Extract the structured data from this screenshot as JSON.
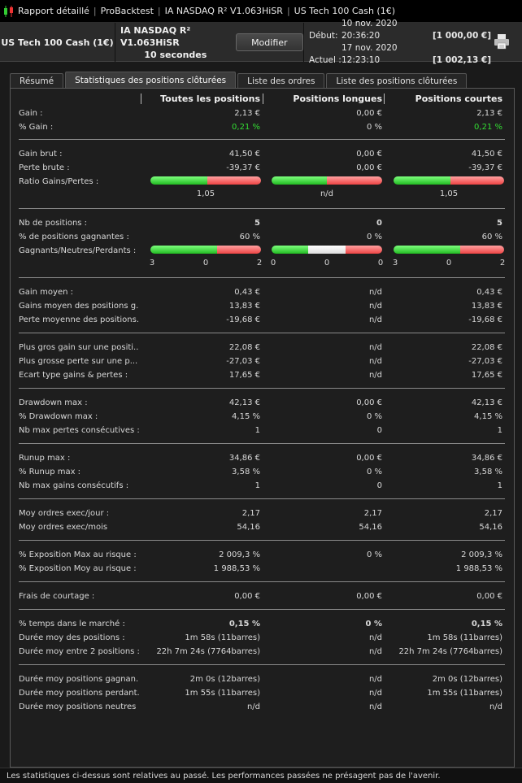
{
  "titlebar": {
    "app": "Rapport détaillé",
    "items": [
      "ProBacktest",
      "IA NASDAQ R²  V1.063HiSR",
      "US Tech 100 Cash (1€)"
    ]
  },
  "header": {
    "instrument": "US Tech 100 Cash (1€)",
    "strategy_line1": "IA NASDAQ R²  V1.063HiSR",
    "strategy_line2": "10 secondes",
    "modify_label": "Modifier",
    "start_label": "Début:",
    "start_date": "10 nov. 2020 20:36:20",
    "start_value": "[1 000,00 €]",
    "current_label": "Actuel :",
    "current_date": "17 nov. 2020 12:23:10",
    "current_value": "[1 002,13 €]"
  },
  "tabs": [
    "Résumé",
    "Statistiques des positions clôturées",
    "Liste des ordres",
    "Liste des positions clôturées"
  ],
  "columns": {
    "all": "Toutes les positions",
    "long": "Positions longues",
    "short": "Positions courtes"
  },
  "rows": [
    {
      "label": "Gain :",
      "v": [
        "2,13 €",
        "0,00 €",
        "2,13 €"
      ]
    },
    {
      "label": "% Gain :",
      "v": [
        "0,21 %",
        "0 %",
        "0,21 %"
      ]
    },
    {
      "label": "Gain brut :",
      "v": [
        "41,50 €",
        "0,00 €",
        "41,50 €"
      ]
    },
    {
      "label": "Perte brute :",
      "v": [
        "-39,37 €",
        "0,00 €",
        "-39,37 €"
      ]
    },
    {
      "label": "Ratio Gains/Pertes :",
      "v": [
        "",
        "",
        ""
      ]
    },
    {
      "label": "Nb de positions :",
      "v": [
        "5",
        "0",
        "5"
      ]
    },
    {
      "label": "% de positions gagnantes :",
      "v": [
        "60 %",
        "0 %",
        "60 %"
      ]
    },
    {
      "label": "Gagnants/Neutres/Perdants :",
      "v": [
        "",
        "",
        ""
      ]
    },
    {
      "label": "Gain moyen :",
      "v": [
        "0,43 €",
        "n/d",
        "0,43 €"
      ]
    },
    {
      "label": "Gains moyen des positions g...",
      "v": [
        "13,83 €",
        "n/d",
        "13,83 €"
      ]
    },
    {
      "label": "Perte moyenne des positions...",
      "v": [
        "-19,68 €",
        "n/d",
        "-19,68 €"
      ]
    },
    {
      "label": "Plus gros gain sur une positi...",
      "v": [
        "22,08 €",
        "n/d",
        "22,08 €"
      ]
    },
    {
      "label": "Plus grosse perte sur une p...",
      "v": [
        "-27,03 €",
        "n/d",
        "-27,03 €"
      ]
    },
    {
      "label": "Ecart type gains & pertes :",
      "v": [
        "17,65 €",
        "n/d",
        "17,65 €"
      ]
    },
    {
      "label": "Drawdown max :",
      "v": [
        "42,13 €",
        "0,00 €",
        "42,13 €"
      ]
    },
    {
      "label": "% Drawdown max :",
      "v": [
        "4,15 %",
        "0 %",
        "4,15 %"
      ]
    },
    {
      "label": "Nb max pertes consécutives :",
      "v": [
        "1",
        "0",
        "1"
      ]
    },
    {
      "label": "Runup max :",
      "v": [
        "34,86 €",
        "0,00 €",
        "34,86 €"
      ]
    },
    {
      "label": "% Runup max :",
      "v": [
        "3,58 %",
        "0 %",
        "3,58 %"
      ]
    },
    {
      "label": "Nb max gains consécutifs :",
      "v": [
        "1",
        "0",
        "1"
      ]
    },
    {
      "label": "Moy ordres exec/jour :",
      "v": [
        "2,17",
        "2,17",
        "2,17"
      ]
    },
    {
      "label": "Moy ordres exec/mois",
      "v": [
        "54,16",
        "54,16",
        "54,16"
      ]
    },
    {
      "label": "% Exposition Max au risque :",
      "v": [
        "2 009,3 %",
        "0 %",
        "2 009,3 %"
      ]
    },
    {
      "label": "% Exposition Moy au risque :",
      "v": [
        "1 988,53 %",
        "",
        "1 988,53 %"
      ]
    },
    {
      "label": "Frais de courtage :",
      "v": [
        "0,00 €",
        "0,00 €",
        "0,00 €"
      ]
    },
    {
      "label": "% temps dans le marché :",
      "v": [
        "0,15 %",
        "0 %",
        "0,15 %"
      ]
    },
    {
      "label": "Durée moy des positions :",
      "v": [
        "1m 58s (11barres)",
        "n/d",
        "1m 58s (11barres)"
      ]
    },
    {
      "label": "Durée moy entre 2 positions :",
      "v": [
        "22h 7m 24s (7764barres)",
        "n/d",
        "22h 7m 24s (7764barres)"
      ]
    },
    {
      "label": "Durée moy positions gagnan...",
      "v": [
        "2m 0s (12barres)",
        "n/d",
        "2m 0s (12barres)"
      ]
    },
    {
      "label": "Durée moy positions perdant...",
      "v": [
        "1m 55s (11barres)",
        "n/d",
        "1m 55s (11barres)"
      ]
    },
    {
      "label": "Durée moy positions neutres :",
      "v": [
        "n/d",
        "n/d",
        "n/d"
      ]
    }
  ],
  "ratio_bars": [
    {
      "text": "1,05",
      "green": 41.5,
      "red": 39.37
    },
    {
      "text": "n/d",
      "green": 0.5,
      "red": 0.5
    },
    {
      "text": "1,05",
      "green": 41.5,
      "red": 39.37
    }
  ],
  "wnl_bars": [
    {
      "w": 3,
      "n": 0,
      "l": 2
    },
    {
      "w": 0,
      "n": 0,
      "l": 0
    },
    {
      "w": 3,
      "n": 0,
      "l": 2
    }
  ],
  "footer": "Les statistiques ci-dessus sont relatives au passé. Les performances passées ne présagent pas de l'avenir.",
  "colors": {
    "green": "#33dd33",
    "red": "#ee4444"
  }
}
